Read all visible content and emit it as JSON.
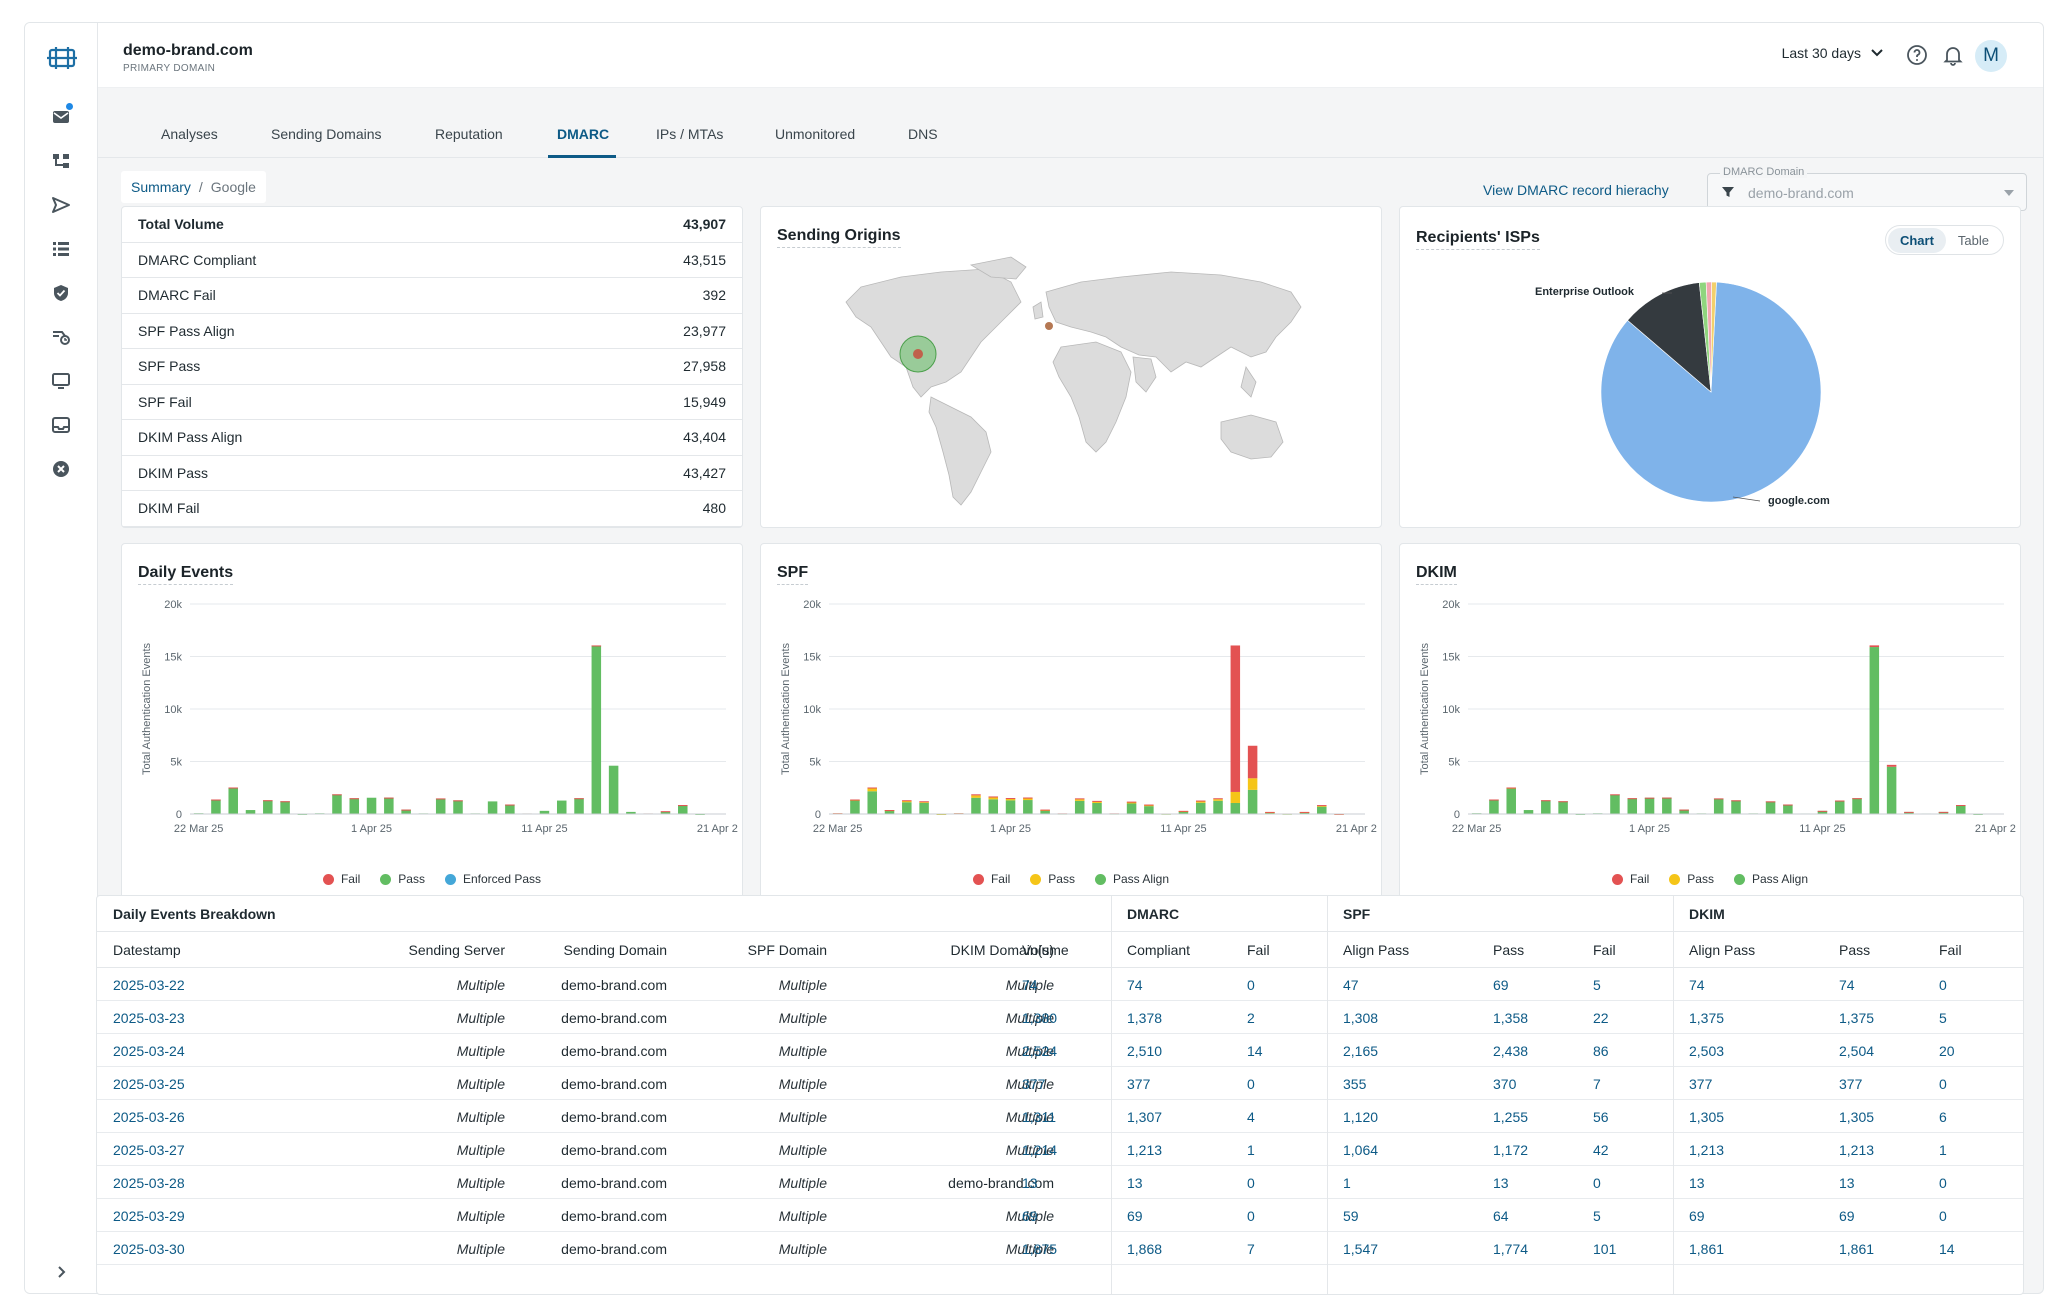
{
  "header": {
    "domain": "demo-brand.com",
    "domain_sub": "PRIMARY DOMAIN",
    "range": "Last 30 days",
    "avatar": "M"
  },
  "sidebar": {
    "icons": [
      "logo-icon",
      "mail-icon",
      "hierarchy-icon",
      "send-icon",
      "list-icon",
      "shield-icon",
      "delivery-icon",
      "monitor-icon",
      "inbox-icon",
      "x-circle-icon",
      "chevron-right-icon"
    ]
  },
  "tabs": [
    "Analyses",
    "Sending Domains",
    "Reputation",
    "DMARC",
    "IPs / MTAs",
    "Unmonitored",
    "DNS"
  ],
  "active_tab": "DMARC",
  "breadcrumb": {
    "root": "Summary",
    "sep": "/",
    "current": "Google"
  },
  "dmarc_link": "View DMARC record hierachy",
  "dmarc_select": {
    "label": "DMARC Domain",
    "value": "demo-brand.com"
  },
  "volume": {
    "rows": [
      {
        "label": "Total Volume",
        "value": "43,907"
      },
      {
        "label": "DMARC Compliant",
        "value": "43,515"
      },
      {
        "label": "DMARC Fail",
        "value": "392"
      },
      {
        "label": "SPF Pass Align",
        "value": "23,977"
      },
      {
        "label": "SPF Pass",
        "value": "27,958"
      },
      {
        "label": "SPF Fail",
        "value": "15,949"
      },
      {
        "label": "DKIM Pass Align",
        "value": "43,404"
      },
      {
        "label": "DKIM Pass",
        "value": "43,427"
      },
      {
        "label": "DKIM Fail",
        "value": "480"
      }
    ]
  },
  "origins": {
    "title": "Sending Origins"
  },
  "isps": {
    "title": "Recipients' ISPs",
    "toggle": [
      "Chart",
      "Table"
    ],
    "toggle_on": "Chart",
    "chart_data": {
      "type": "pie",
      "slices": [
        {
          "label": "google.com",
          "value": 85.5,
          "color": "#7fb3ea"
        },
        {
          "label": "Enterprise Outlook",
          "value": 12.0,
          "color": "#343a3f"
        },
        {
          "label": "",
          "value": 1.0,
          "color": "#8fd57e"
        },
        {
          "label": "",
          "value": 0.8,
          "color": "#f2a7b0"
        },
        {
          "label": "",
          "value": 0.7,
          "color": "#f2d06b"
        }
      ]
    }
  },
  "charts": [
    {
      "title": "Daily Events",
      "chart_data": {
        "type": "bar",
        "ylabel": "Total Authentication Events",
        "yticks": [
          "0",
          "5k",
          "10k",
          "15k",
          "20k"
        ],
        "ylim": [
          0,
          20000
        ],
        "xticks": [
          "22 Mar 25",
          "1 Apr 25",
          "11 Apr 25",
          "21 Apr 2"
        ],
        "series": [
          {
            "name": "Fail",
            "color": "#e35252",
            "values": [
              0,
              2,
              14,
              0,
              4,
              1,
              0,
              0,
              7,
              2,
              0,
              3,
              1,
              0,
              2,
              1,
              0,
              0,
              2,
              1,
              0,
              0,
              3,
              2,
              0,
              0,
              3,
              70,
              2,
              0,
              0
            ]
          },
          {
            "name": "Pass",
            "color": "#62bd62",
            "values": [
              74,
              1378,
              2510,
              377,
              1307,
              1213,
              13,
              69,
              1868,
              1500,
              1550,
              1560,
              420,
              60,
              1480,
              1300,
              60,
              1200,
              900,
              50,
              300,
              1280,
              1500,
              16050,
              4600,
              200,
              50,
              200,
              850,
              10,
              0
            ]
          },
          {
            "name": "Enforced Pass",
            "color": "#44a7d8",
            "values": []
          }
        ]
      }
    },
    {
      "title": "SPF",
      "chart_data": {
        "type": "bar",
        "ylabel": "Total Authentication Events",
        "yticks": [
          "0",
          "5k",
          "10k",
          "15k",
          "20k"
        ],
        "ylim": [
          0,
          20000
        ],
        "xticks": [
          "22 Mar 25",
          "1 Apr 25",
          "11 Apr 25",
          "21 Apr 2"
        ],
        "series": [
          {
            "name": "Fail",
            "color": "#e35252",
            "values": [
              5,
              22,
              86,
              7,
              56,
              42,
              0,
              5,
              101,
              90,
              70,
              80,
              30,
              10,
              80,
              70,
              10,
              60,
              60,
              10,
              20,
              80,
              90,
              13950,
              3100,
              20,
              10,
              10,
              60,
              5,
              0
            ]
          },
          {
            "name": "Pass",
            "color": "#f5c518",
            "values": [
              22,
              50,
              273,
              15,
              135,
              108,
              12,
              5,
              227,
              180,
              150,
              160,
              50,
              10,
              160,
              130,
              10,
              120,
              90,
              10,
              40,
              130,
              150,
              1050,
              1100,
              20,
              10,
              20,
              90,
              5,
              0
            ]
          },
          {
            "name": "Pass Align",
            "color": "#62bd62",
            "values": [
              47,
              1308,
              2165,
              355,
              1120,
              1064,
              1,
              59,
              1547,
              1400,
              1300,
              1330,
              340,
              40,
              1250,
              1050,
              40,
              1000,
              750,
              30,
              240,
              1070,
              1260,
              1050,
              2300,
              160,
              30,
              170,
              700,
              0,
              0
            ]
          }
        ]
      }
    },
    {
      "title": "DKIM",
      "chart_data": {
        "type": "bar",
        "ylabel": "Total Authentication Events",
        "yticks": [
          "0",
          "5k",
          "10k",
          "15k",
          "20k"
        ],
        "ylim": [
          0,
          20000
        ],
        "xticks": [
          "22 Mar 25",
          "1 Apr 25",
          "11 Apr 25",
          "21 Apr 2"
        ],
        "series": [
          {
            "name": "Fail",
            "color": "#e35252",
            "values": [
              0,
              5,
              20,
              0,
              6,
              1,
              0,
              0,
              14,
              5,
              5,
              5,
              1,
              0,
              5,
              3,
              0,
              3,
              3,
              0,
              1,
              3,
              5,
              160,
              180,
              1,
              0,
              1,
              3,
              0,
              0
            ]
          },
          {
            "name": "Pass",
            "color": "#f5c518",
            "values": [
              0,
              0,
              1,
              0,
              0,
              0,
              0,
              0,
              0,
              0,
              0,
              0,
              0,
              0,
              0,
              0,
              0,
              0,
              0,
              0,
              0,
              0,
              0,
              0,
              0,
              0,
              0,
              0,
              0,
              0,
              0
            ]
          },
          {
            "name": "Pass Align",
            "color": "#62bd62",
            "values": [
              74,
              1375,
              2503,
              377,
              1305,
              1213,
              13,
              69,
              1861,
              1500,
              1550,
              1560,
              420,
              60,
              1480,
              1300,
              60,
              1200,
              900,
              50,
              300,
              1280,
              1500,
              15900,
              4500,
              200,
              50,
              200,
              850,
              10,
              0
            ]
          }
        ]
      }
    }
  ],
  "breakdown": {
    "title": "Daily Events Breakdown",
    "groups": [
      "DMARC",
      "SPF",
      "DKIM"
    ],
    "columns": [
      "Datestamp",
      "Sending Server",
      "Sending Domain",
      "SPF Domain",
      "DKIM Domain(s)",
      "Volume",
      "Compliant",
      "Fail",
      "Align Pass",
      "Pass",
      "Fail",
      "Align Pass",
      "Pass",
      "Fail"
    ],
    "rows": [
      [
        "2025-03-22",
        "Multiple",
        "demo-brand.com",
        "Multiple",
        "Multiple",
        "74",
        "74",
        "0",
        "47",
        "69",
        "5",
        "74",
        "74",
        "0"
      ],
      [
        "2025-03-23",
        "Multiple",
        "demo-brand.com",
        "Multiple",
        "Multiple",
        "1,380",
        "1,378",
        "2",
        "1,308",
        "1,358",
        "22",
        "1,375",
        "1,375",
        "5"
      ],
      [
        "2025-03-24",
        "Multiple",
        "demo-brand.com",
        "Multiple",
        "Multiple",
        "2,524",
        "2,510",
        "14",
        "2,165",
        "2,438",
        "86",
        "2,503",
        "2,504",
        "20"
      ],
      [
        "2025-03-25",
        "Multiple",
        "demo-brand.com",
        "Multiple",
        "Multiple",
        "377",
        "377",
        "0",
        "355",
        "370",
        "7",
        "377",
        "377",
        "0"
      ],
      [
        "2025-03-26",
        "Multiple",
        "demo-brand.com",
        "Multiple",
        "Multiple",
        "1,311",
        "1,307",
        "4",
        "1,120",
        "1,255",
        "56",
        "1,305",
        "1,305",
        "6"
      ],
      [
        "2025-03-27",
        "Multiple",
        "demo-brand.com",
        "Multiple",
        "Multiple",
        "1,214",
        "1,213",
        "1",
        "1,064",
        "1,172",
        "42",
        "1,213",
        "1,213",
        "1"
      ],
      [
        "2025-03-28",
        "Multiple",
        "demo-brand.com",
        "Multiple",
        "demo-brand.com",
        "13",
        "13",
        "0",
        "1",
        "13",
        "0",
        "13",
        "13",
        "0"
      ],
      [
        "2025-03-29",
        "Multiple",
        "demo-brand.com",
        "Multiple",
        "Multiple",
        "69",
        "69",
        "0",
        "59",
        "64",
        "5",
        "69",
        "69",
        "0"
      ],
      [
        "2025-03-30",
        "Multiple",
        "demo-brand.com",
        "Multiple",
        "Multiple",
        "1,875",
        "1,868",
        "7",
        "1,547",
        "1,774",
        "101",
        "1,861",
        "1,861",
        "14"
      ]
    ]
  }
}
